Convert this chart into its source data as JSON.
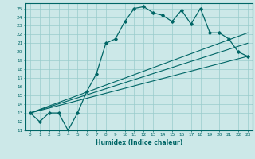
{
  "title": "",
  "xlabel": "Humidex (Indice chaleur)",
  "bg_color": "#cce8e8",
  "grid_color": "#99cccc",
  "line_color": "#006666",
  "xlim": [
    -0.5,
    23.5
  ],
  "ylim": [
    11,
    25.6
  ],
  "yticks": [
    11,
    12,
    13,
    14,
    15,
    16,
    17,
    18,
    19,
    20,
    21,
    22,
    23,
    24,
    25
  ],
  "xticks": [
    0,
    1,
    2,
    3,
    4,
    5,
    6,
    7,
    8,
    9,
    10,
    11,
    12,
    13,
    14,
    15,
    16,
    17,
    18,
    19,
    20,
    21,
    22,
    23
  ],
  "main_x": [
    0,
    1,
    2,
    3,
    4,
    5,
    6,
    7,
    8,
    9,
    10,
    11,
    12,
    13,
    14,
    15,
    16,
    17,
    18,
    19,
    20,
    21,
    22,
    23
  ],
  "main_y": [
    13,
    12,
    13,
    13,
    11,
    13,
    15.5,
    17.5,
    21,
    21.5,
    23.5,
    25,
    25.2,
    24.5,
    24.2,
    23.5,
    24.8,
    23.2,
    25,
    22.2,
    22.2,
    21.5,
    20,
    19.5
  ],
  "line1_x": [
    0,
    23
  ],
  "line1_y": [
    13,
    19.5
  ],
  "line2_x": [
    0,
    23
  ],
  "line2_y": [
    13,
    22.2
  ],
  "line3_x": [
    0,
    23
  ],
  "line3_y": [
    13,
    21.0
  ]
}
